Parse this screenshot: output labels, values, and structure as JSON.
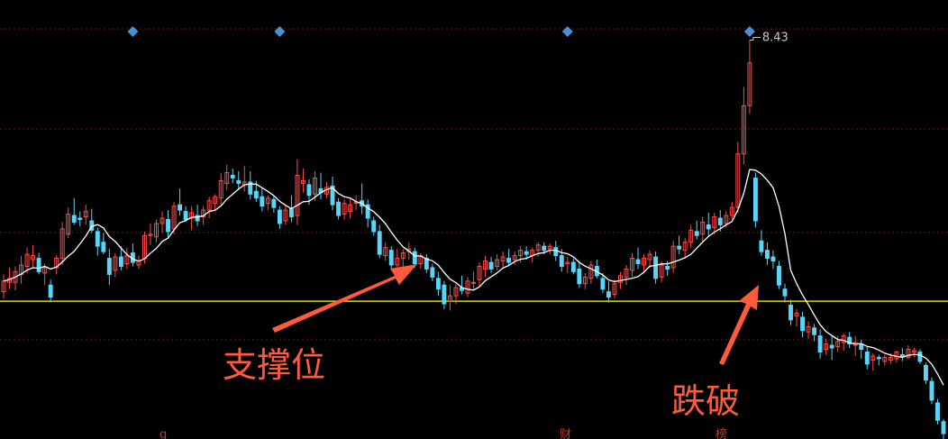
{
  "chart_data": {
    "type": "candlestick",
    "title": "",
    "xlabel": "",
    "ylabel": "",
    "ylim": [
      5.45,
      8.73
    ],
    "grid": true,
    "colors": {
      "up": "#ff4a4a",
      "down": "#5bd5f7",
      "ma": "#ffffff",
      "support": "#d8d800",
      "annotation": "#ff5a3c",
      "marker": "#4a90d9"
    },
    "peak_label": "8.43",
    "support_level": 6.48,
    "annotations": {
      "support": "支撑位",
      "breakdown": "跌破"
    },
    "event_labels": [
      "g",
      "财",
      "榜"
    ],
    "markers_count": 4,
    "candles": [
      [
        6.55,
        6.68,
        6.5,
        6.63
      ],
      [
        6.62,
        6.73,
        6.57,
        6.65
      ],
      [
        6.62,
        6.74,
        6.56,
        6.7
      ],
      [
        6.68,
        6.82,
        6.61,
        6.75
      ],
      [
        6.74,
        6.88,
        6.69,
        6.83
      ],
      [
        6.79,
        6.9,
        6.73,
        6.82
      ],
      [
        6.8,
        6.84,
        6.68,
        6.7
      ],
      [
        6.69,
        6.76,
        6.6,
        6.73
      ],
      [
        6.6,
        6.64,
        6.47,
        6.51
      ],
      [
        6.73,
        6.82,
        6.68,
        6.8
      ],
      [
        6.8,
        7.07,
        6.75,
        7.02
      ],
      [
        6.98,
        7.18,
        6.95,
        7.13
      ],
      [
        7.12,
        7.25,
        7.05,
        7.07
      ],
      [
        7.1,
        7.15,
        7.04,
        7.09
      ],
      [
        7.11,
        7.2,
        7.05,
        7.15
      ],
      [
        7.08,
        7.17,
        6.99,
        7.01
      ],
      [
        7.0,
        7.03,
        6.82,
        6.89
      ],
      [
        6.92,
        6.99,
        6.83,
        6.85
      ],
      [
        6.8,
        6.87,
        6.6,
        6.68
      ],
      [
        6.71,
        6.84,
        6.66,
        6.81
      ],
      [
        6.81,
        6.89,
        6.71,
        6.74
      ],
      [
        6.76,
        6.88,
        6.72,
        6.82
      ],
      [
        6.84,
        6.91,
        6.74,
        6.77
      ],
      [
        6.75,
        6.82,
        6.72,
        6.78
      ],
      [
        6.8,
        7.0,
        6.76,
        6.97
      ],
      [
        6.97,
        7.06,
        6.9,
        6.98
      ],
      [
        6.96,
        7.09,
        6.92,
        7.06
      ],
      [
        7.06,
        7.15,
        6.99,
        7.1
      ],
      [
        7.09,
        7.16,
        6.95,
        7.0
      ],
      [
        7.02,
        7.22,
        6.98,
        7.19
      ],
      [
        7.2,
        7.32,
        7.12,
        7.16
      ],
      [
        7.15,
        7.19,
        7.07,
        7.09
      ],
      [
        7.1,
        7.19,
        7.01,
        7.14
      ],
      [
        7.12,
        7.2,
        7.04,
        7.08
      ],
      [
        7.11,
        7.19,
        7.05,
        7.16
      ],
      [
        7.16,
        7.26,
        7.1,
        7.23
      ],
      [
        7.21,
        7.28,
        7.15,
        7.26
      ],
      [
        7.25,
        7.44,
        7.2,
        7.38
      ],
      [
        7.36,
        7.5,
        7.31,
        7.44
      ],
      [
        7.42,
        7.47,
        7.36,
        7.4
      ],
      [
        7.38,
        7.45,
        7.31,
        7.36
      ],
      [
        7.35,
        7.49,
        7.3,
        7.37
      ],
      [
        7.37,
        7.45,
        7.24,
        7.28
      ],
      [
        7.3,
        7.38,
        7.22,
        7.25
      ],
      [
        7.26,
        7.32,
        7.15,
        7.19
      ],
      [
        7.21,
        7.27,
        7.16,
        7.25
      ],
      [
        7.24,
        7.27,
        7.14,
        7.18
      ],
      [
        7.16,
        7.19,
        7.02,
        7.06
      ],
      [
        7.08,
        7.2,
        7.05,
        7.16
      ],
      [
        7.17,
        7.27,
        7.07,
        7.11
      ],
      [
        7.12,
        7.54,
        7.05,
        7.42
      ],
      [
        7.36,
        7.47,
        7.29,
        7.38
      ],
      [
        7.35,
        7.39,
        7.2,
        7.27
      ],
      [
        7.28,
        7.45,
        7.23,
        7.4
      ],
      [
        7.32,
        7.44,
        7.24,
        7.29
      ],
      [
        7.28,
        7.37,
        7.25,
        7.33
      ],
      [
        7.34,
        7.41,
        7.16,
        7.2
      ],
      [
        7.22,
        7.25,
        7.09,
        7.12
      ],
      [
        7.13,
        7.24,
        7.09,
        7.21
      ],
      [
        7.15,
        7.25,
        7.1,
        7.2
      ],
      [
        7.21,
        7.27,
        7.16,
        7.22
      ],
      [
        7.23,
        7.36,
        7.13,
        7.19
      ],
      [
        7.2,
        7.24,
        7.03,
        7.1
      ],
      [
        7.08,
        7.11,
        6.97,
        7.0
      ],
      [
        7.0,
        7.05,
        6.8,
        6.83
      ],
      [
        6.82,
        6.92,
        6.78,
        6.88
      ],
      [
        6.86,
        6.89,
        6.72,
        6.75
      ],
      [
        6.75,
        6.87,
        6.71,
        6.8
      ],
      [
        6.8,
        6.87,
        6.72,
        6.84
      ],
      [
        6.85,
        6.92,
        6.79,
        6.87
      ],
      [
        6.85,
        6.88,
        6.73,
        6.76
      ],
      [
        6.76,
        6.84,
        6.72,
        6.82
      ],
      [
        6.8,
        6.83,
        6.69,
        6.72
      ],
      [
        6.73,
        6.76,
        6.63,
        6.66
      ],
      [
        6.65,
        6.7,
        6.52,
        6.57
      ],
      [
        6.6,
        6.63,
        6.42,
        6.46
      ],
      [
        6.48,
        6.6,
        6.41,
        6.52
      ],
      [
        6.52,
        6.61,
        6.46,
        6.58
      ],
      [
        6.58,
        6.67,
        6.53,
        6.56
      ],
      [
        6.54,
        6.66,
        6.51,
        6.63
      ],
      [
        6.62,
        6.7,
        6.57,
        6.62
      ],
      [
        6.64,
        6.77,
        6.59,
        6.74
      ],
      [
        6.72,
        6.82,
        6.66,
        6.78
      ],
      [
        6.77,
        6.81,
        6.69,
        6.72
      ],
      [
        6.74,
        6.83,
        6.71,
        6.79
      ],
      [
        6.78,
        6.85,
        6.72,
        6.81
      ],
      [
        6.8,
        6.87,
        6.74,
        6.77
      ],
      [
        6.79,
        6.85,
        6.75,
        6.82
      ],
      [
        6.82,
        6.89,
        6.77,
        6.86
      ],
      [
        6.85,
        6.89,
        6.79,
        6.83
      ],
      [
        6.82,
        6.88,
        6.77,
        6.86
      ],
      [
        6.86,
        6.92,
        6.81,
        6.9
      ],
      [
        6.89,
        6.92,
        6.83,
        6.86
      ],
      [
        6.87,
        6.91,
        6.83,
        6.89
      ],
      [
        6.88,
        6.93,
        6.78,
        6.82
      ],
      [
        6.82,
        6.87,
        6.7,
        6.74
      ],
      [
        6.76,
        6.81,
        6.69,
        6.77
      ],
      [
        6.77,
        6.8,
        6.68,
        6.7
      ],
      [
        6.72,
        6.78,
        6.58,
        6.61
      ],
      [
        6.61,
        6.69,
        6.57,
        6.66
      ],
      [
        6.65,
        6.78,
        6.61,
        6.75
      ],
      [
        6.74,
        6.79,
        6.65,
        6.67
      ],
      [
        6.65,
        6.69,
        6.54,
        6.57
      ],
      [
        6.55,
        6.63,
        6.47,
        6.51
      ],
      [
        6.53,
        6.64,
        6.5,
        6.61
      ],
      [
        6.62,
        6.7,
        6.57,
        6.67
      ],
      [
        6.66,
        6.75,
        6.6,
        6.72
      ],
      [
        6.71,
        6.84,
        6.66,
        6.8
      ],
      [
        6.79,
        6.88,
        6.72,
        6.76
      ],
      [
        6.75,
        6.83,
        6.69,
        6.8
      ],
      [
        6.79,
        6.86,
        6.73,
        6.83
      ],
      [
        6.81,
        6.85,
        6.61,
        6.65
      ],
      [
        6.66,
        6.78,
        6.62,
        6.75
      ],
      [
        6.74,
        6.78,
        6.67,
        6.72
      ],
      [
        6.73,
        6.93,
        6.69,
        6.89
      ],
      [
        6.89,
        6.97,
        6.83,
        6.87
      ],
      [
        6.86,
        6.95,
        6.8,
        6.92
      ],
      [
        6.92,
        7.05,
        6.88,
        7.01
      ],
      [
        7.0,
        7.08,
        6.94,
        6.97
      ],
      [
        6.98,
        7.11,
        6.93,
        7.07
      ],
      [
        7.05,
        7.14,
        6.97,
        7.02
      ],
      [
        7.03,
        7.14,
        6.98,
        7.11
      ],
      [
        7.1,
        7.16,
        7.0,
        7.05
      ],
      [
        7.06,
        7.15,
        7.03,
        7.12
      ],
      [
        7.12,
        7.22,
        7.09,
        7.18
      ],
      [
        7.18,
        7.67,
        7.14,
        7.58
      ],
      [
        7.58,
        8.08,
        7.5,
        7.94
      ],
      [
        7.94,
        8.43,
        7.88,
        8.26
      ],
      [
        7.4,
        7.44,
        7.03,
        7.08
      ],
      [
        6.93,
        7.01,
        6.82,
        6.85
      ],
      [
        6.86,
        6.92,
        6.75,
        6.8
      ],
      [
        6.81,
        6.86,
        6.72,
        6.78
      ],
      [
        6.74,
        6.78,
        6.57,
        6.6
      ],
      [
        6.57,
        6.61,
        6.47,
        6.52
      ],
      [
        6.45,
        6.49,
        6.3,
        6.34
      ],
      [
        6.37,
        6.42,
        6.29,
        6.39
      ],
      [
        6.36,
        6.4,
        6.21,
        6.26
      ],
      [
        6.25,
        6.33,
        6.2,
        6.29
      ],
      [
        6.28,
        6.31,
        6.18,
        6.23
      ],
      [
        6.22,
        6.27,
        6.05,
        6.1
      ],
      [
        6.12,
        6.2,
        6.08,
        6.16
      ],
      [
        6.15,
        6.22,
        6.04,
        6.13
      ],
      [
        6.14,
        6.22,
        6.1,
        6.18
      ],
      [
        6.17,
        6.24,
        6.11,
        6.22
      ],
      [
        6.21,
        6.25,
        6.13,
        6.16
      ],
      [
        6.15,
        6.22,
        6.07,
        6.17
      ],
      [
        6.16,
        6.19,
        6.05,
        6.12
      ],
      [
        6.1,
        6.14,
        5.97,
        6.01
      ],
      [
        6.04,
        6.09,
        5.96,
        6.07
      ],
      [
        6.06,
        6.08,
        6.0,
        6.05
      ],
      [
        6.03,
        6.08,
        6.0,
        6.06
      ],
      [
        6.04,
        6.09,
        6.01,
        6.06
      ],
      [
        6.05,
        6.11,
        6.02,
        6.1
      ],
      [
        6.08,
        6.13,
        6.03,
        6.07
      ],
      [
        6.06,
        6.15,
        6.05,
        6.12
      ],
      [
        6.1,
        6.13,
        6.06,
        6.11
      ],
      [
        6.1,
        6.12,
        6.01,
        6.03
      ],
      [
        6.0,
        6.02,
        5.86,
        5.89
      ],
      [
        5.88,
        5.91,
        5.71,
        5.74
      ],
      [
        5.72,
        5.75,
        5.56,
        5.59
      ],
      [
        5.58,
        5.6,
        5.45,
        5.49
      ]
    ]
  }
}
